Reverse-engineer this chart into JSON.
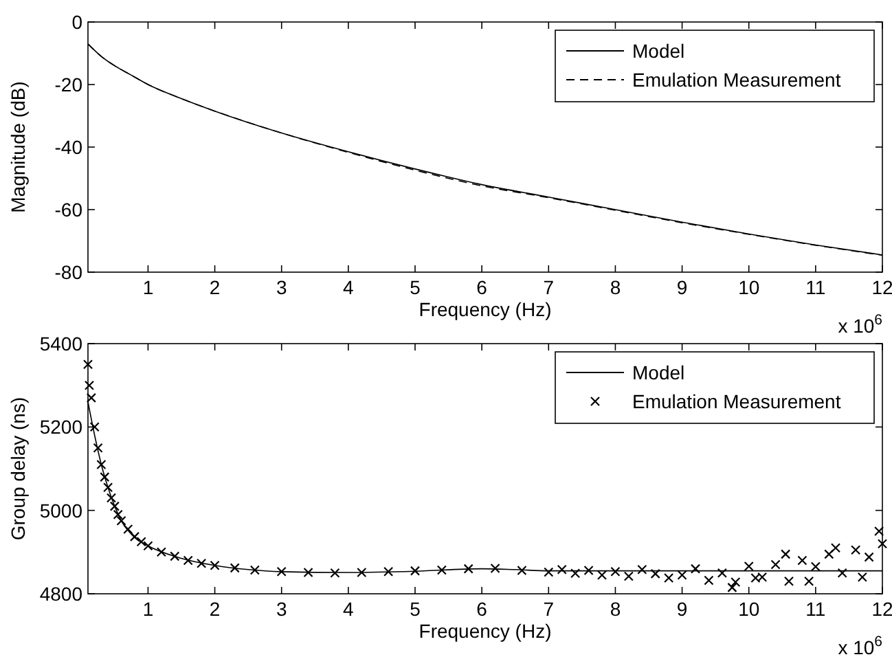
{
  "chart_data": [
    {
      "type": "line",
      "xlabel": "Frequency (Hz)",
      "ylabel": "Magnitude (dB)",
      "xlim": [
        0.1,
        12
      ],
      "xticks": [
        1,
        2,
        3,
        4,
        5,
        6,
        7,
        8,
        9,
        10,
        11,
        12
      ],
      "ylim": [
        -80,
        0
      ],
      "yticks": [
        -80,
        -60,
        -40,
        -20,
        0
      ],
      "legend": "top right",
      "annotations": [
        "x 10$^{6}$"
      ],
      "series": [
        {
          "name": "Model",
          "color": "#000000",
          "line_style": "solid",
          "x": [
            0.1,
            0.3,
            0.5,
            0.75,
            1,
            1.5,
            2,
            3,
            4,
            5,
            6,
            7,
            8,
            9,
            10,
            11,
            12
          ],
          "values": [
            -7,
            -11,
            -14,
            -17,
            -20,
            -24.5,
            -28.5,
            -35.5,
            -41.5,
            -47,
            -52,
            -56,
            -60,
            -64,
            -67.8,
            -71.3,
            -74.5
          ]
        },
        {
          "name": "Emulation Measurement",
          "color": "#000000",
          "line_style": "dashed",
          "x": [
            0.1,
            0.3,
            0.5,
            0.75,
            1,
            1.5,
            2,
            3,
            4,
            5,
            6,
            7,
            8,
            9,
            10,
            11,
            12
          ],
          "values": [
            -7,
            -11,
            -14,
            -17,
            -20,
            -24.5,
            -28.5,
            -35.5,
            -41.7,
            -47.4,
            -52.4,
            -56.2,
            -60.2,
            -64.2,
            -67.9,
            -71.4,
            -74.6
          ]
        }
      ]
    },
    {
      "type": "line",
      "xlabel": "Frequency (Hz)",
      "ylabel": "Group delay (ns)",
      "xlim": [
        0.1,
        12
      ],
      "xticks": [
        1,
        2,
        3,
        4,
        5,
        6,
        7,
        8,
        9,
        10,
        11,
        12
      ],
      "ylim": [
        4800,
        5400
      ],
      "yticks": [
        4800,
        5000,
        5200,
        5400
      ],
      "legend": "top right",
      "annotations": [
        "x 10$^{6}$"
      ],
      "series": [
        {
          "name": "Model",
          "color": "#000000",
          "line_style": "solid",
          "x": [
            0.1,
            0.2,
            0.3,
            0.4,
            0.5,
            0.6,
            0.8,
            1,
            1.5,
            2,
            2.5,
            3,
            4,
            5,
            6,
            6.5,
            7,
            8,
            12
          ],
          "values": [
            5260,
            5180,
            5110,
            5055,
            5010,
            4975,
            4935,
            4915,
            4885,
            4868,
            4858,
            4853,
            4851,
            4854,
            4860,
            4858,
            4855,
            4855,
            4855
          ]
        },
        {
          "type": "scatter",
          "name": "Emulation Measurement",
          "color": "#000000",
          "marker": "cross",
          "x": [
            0.1,
            0.12,
            0.15,
            0.2,
            0.25,
            0.3,
            0.35,
            0.4,
            0.45,
            0.5,
            0.55,
            0.6,
            0.7,
            0.8,
            0.9,
            1,
            1.2,
            1.4,
            1.6,
            1.8,
            2,
            2.3,
            2.6,
            3,
            3.4,
            3.8,
            4.2,
            4.6,
            5,
            5.4,
            5.8,
            6.2,
            6.6,
            7,
            7.2,
            7.4,
            7.6,
            7.8,
            8,
            8.2,
            8.4,
            8.6,
            8.8,
            9,
            9.2,
            9.4,
            9.6,
            9.8,
            10,
            10.2,
            10.4,
            10.6,
            10.8,
            11,
            11.2,
            11.4,
            11.6,
            11.8,
            12,
            9.75,
            10.1,
            10.55,
            10.9,
            11.3,
            11.7,
            11.95
          ],
          "values": [
            5350,
            5300,
            5270,
            5200,
            5150,
            5110,
            5080,
            5055,
            5030,
            5010,
            4990,
            4975,
            4955,
            4937,
            4925,
            4915,
            4900,
            4890,
            4880,
            4873,
            4868,
            4862,
            4857,
            4853,
            4851,
            4850,
            4851,
            4853,
            4855,
            4857,
            4860,
            4861,
            4856,
            4852,
            4858,
            4849,
            4856,
            4845,
            4853,
            4842,
            4858,
            4848,
            4838,
            4845,
            4860,
            4832,
            4850,
            4828,
            4866,
            4840,
            4870,
            4830,
            4880,
            4865,
            4895,
            4850,
            4905,
            4888,
            4920,
            4815,
            4838,
            4895,
            4830,
            4910,
            4840,
            4950
          ]
        }
      ]
    }
  ]
}
